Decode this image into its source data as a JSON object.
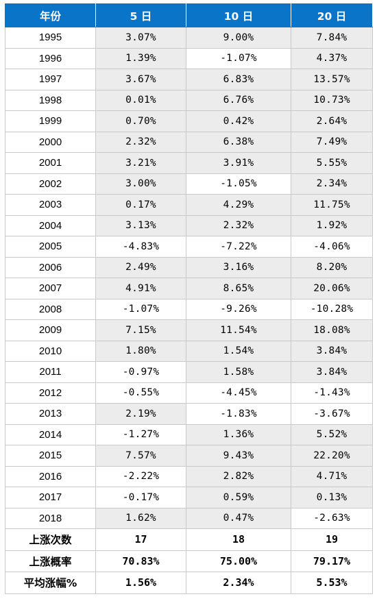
{
  "header": {
    "col0": "年份",
    "col1": "5 日",
    "col2": "10 日",
    "col3": "20 日"
  },
  "rows": [
    {
      "year": "1995",
      "d5": "3.07%",
      "d10": "9.00%",
      "d20": "7.84%"
    },
    {
      "year": "1996",
      "d5": "1.39%",
      "d10": "-1.07%",
      "d20": "4.37%"
    },
    {
      "year": "1997",
      "d5": "3.67%",
      "d10": "6.83%",
      "d20": "13.57%"
    },
    {
      "year": "1998",
      "d5": "0.01%",
      "d10": "6.76%",
      "d20": "10.73%"
    },
    {
      "year": "1999",
      "d5": "0.70%",
      "d10": "0.42%",
      "d20": "2.64%"
    },
    {
      "year": "2000",
      "d5": "2.32%",
      "d10": "6.38%",
      "d20": "7.49%"
    },
    {
      "year": "2001",
      "d5": "3.21%",
      "d10": "3.91%",
      "d20": "5.55%"
    },
    {
      "year": "2002",
      "d5": "3.00%",
      "d10": "-1.05%",
      "d20": "2.34%"
    },
    {
      "year": "2003",
      "d5": "0.17%",
      "d10": "4.29%",
      "d20": "11.75%"
    },
    {
      "year": "2004",
      "d5": "3.13%",
      "d10": "2.32%",
      "d20": "1.92%"
    },
    {
      "year": "2005",
      "d5": "-4.83%",
      "d10": "-7.22%",
      "d20": "-4.06%"
    },
    {
      "year": "2006",
      "d5": "2.49%",
      "d10": "3.16%",
      "d20": "8.20%"
    },
    {
      "year": "2007",
      "d5": "4.91%",
      "d10": "8.65%",
      "d20": "20.06%"
    },
    {
      "year": "2008",
      "d5": "-1.07%",
      "d10": "-9.26%",
      "d20": "-10.28%"
    },
    {
      "year": "2009",
      "d5": "7.15%",
      "d10": "11.54%",
      "d20": "18.08%"
    },
    {
      "year": "2010",
      "d5": "1.80%",
      "d10": "1.54%",
      "d20": "3.84%"
    },
    {
      "year": "2011",
      "d5": "-0.97%",
      "d10": "1.58%",
      "d20": "3.84%"
    },
    {
      "year": "2012",
      "d5": "-0.55%",
      "d10": "-4.45%",
      "d20": "-1.43%"
    },
    {
      "year": "2013",
      "d5": "2.19%",
      "d10": "-1.83%",
      "d20": "-3.67%"
    },
    {
      "year": "2014",
      "d5": "-1.27%",
      "d10": "1.36%",
      "d20": "5.52%"
    },
    {
      "year": "2015",
      "d5": "7.57%",
      "d10": "9.43%",
      "d20": "22.20%"
    },
    {
      "year": "2016",
      "d5": "-2.22%",
      "d10": "2.82%",
      "d20": "4.71%"
    },
    {
      "year": "2017",
      "d5": "-0.17%",
      "d10": "0.59%",
      "d20": "0.13%"
    },
    {
      "year": "2018",
      "d5": "1.62%",
      "d10": "0.47%",
      "d20": "-2.63%"
    }
  ],
  "summary": [
    {
      "label": "上涨次数",
      "d5": "17",
      "d10": "18",
      "d20": "19"
    },
    {
      "label": "上涨概率",
      "d5": "70.83%",
      "d10": "75.00%",
      "d20": "79.17%"
    },
    {
      "label": "平均涨幅%",
      "d5": "1.56%",
      "d10": "2.34%",
      "d20": "5.53%"
    }
  ],
  "colors": {
    "header_bg": "#0a74c9",
    "positive_bg": "#ececec",
    "negative_bg": "#ffffff",
    "border": "#c9c9c9"
  }
}
